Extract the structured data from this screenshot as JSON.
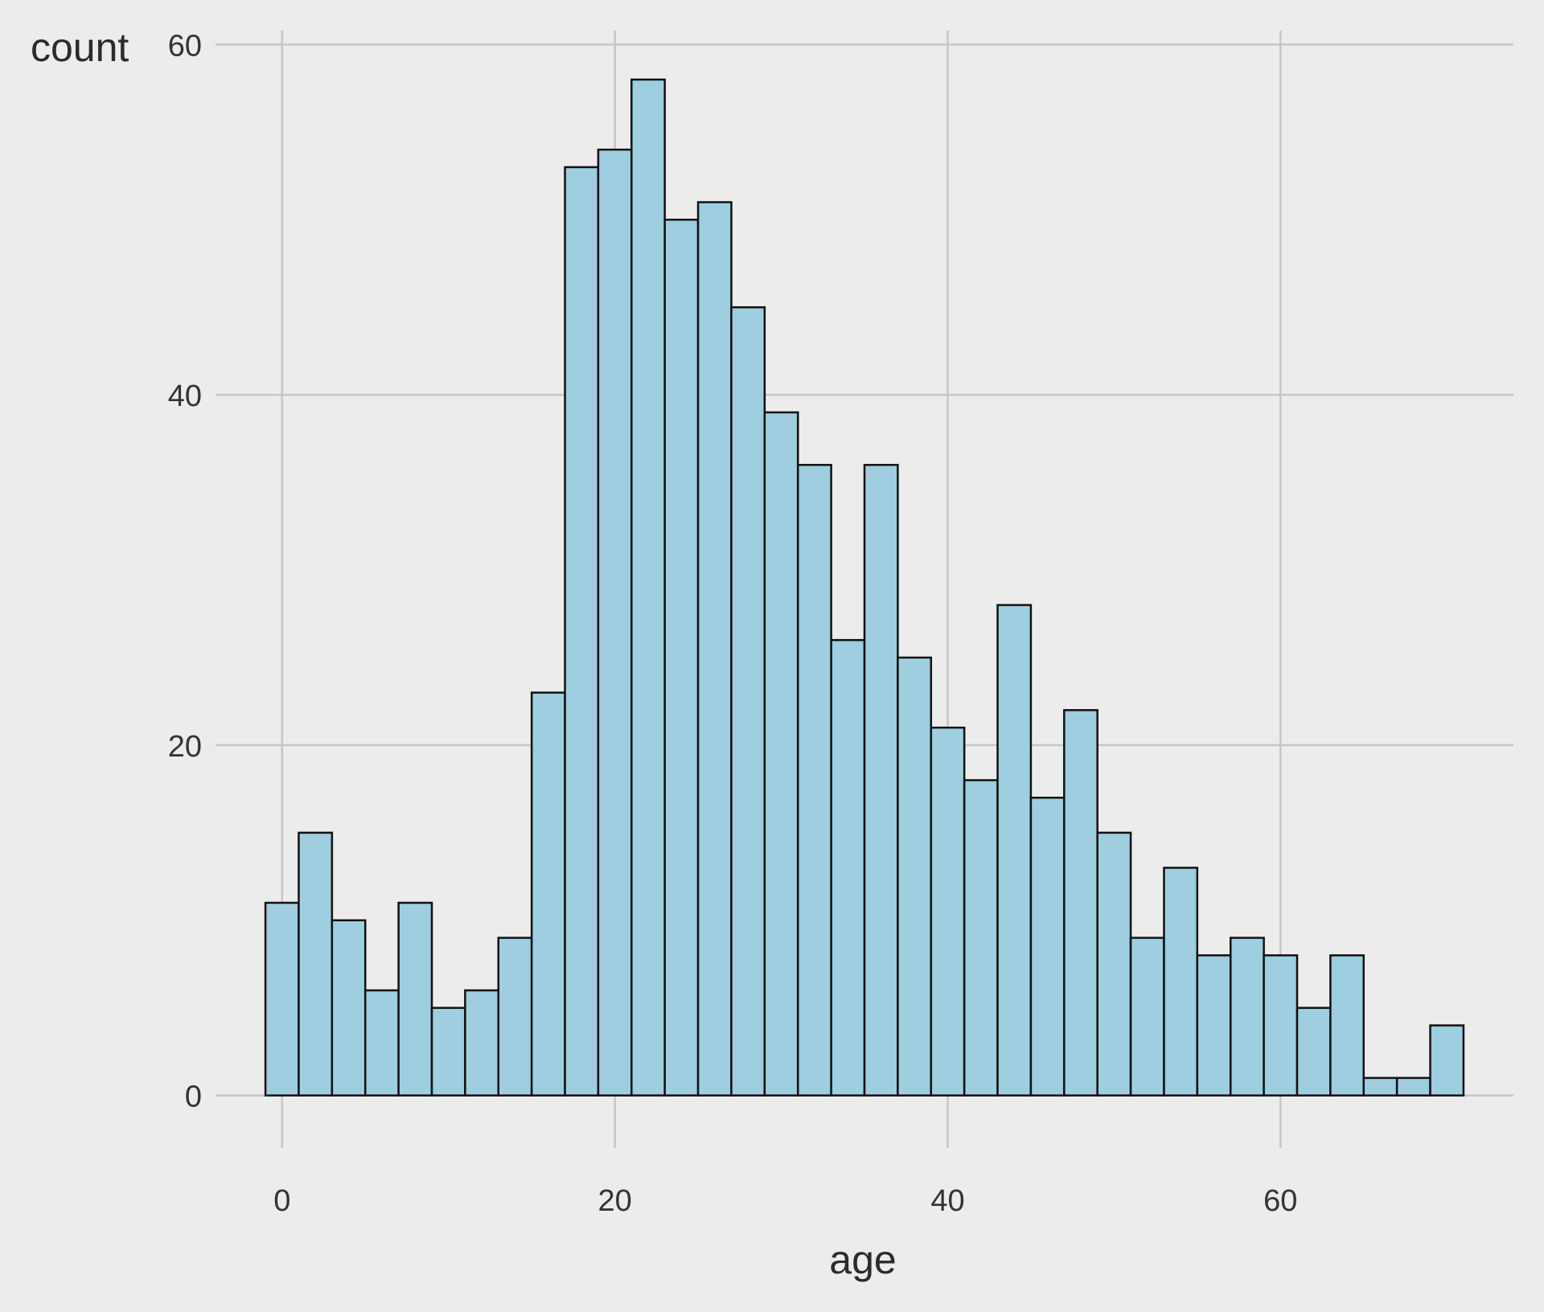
{
  "chart_data": {
    "type": "bar",
    "title": "",
    "xlabel": "age",
    "ylabel": "count",
    "bin_width": 2,
    "bin_start": -1,
    "values": [
      11,
      15,
      10,
      6,
      11,
      5,
      6,
      9,
      23,
      53,
      54,
      58,
      50,
      51,
      45,
      39,
      36,
      26,
      36,
      25,
      21,
      18,
      28,
      17,
      22,
      15,
      9,
      13,
      8,
      9,
      8,
      5,
      8,
      1,
      1,
      4
    ],
    "xlim": [
      -4,
      74
    ],
    "ylim": [
      -3,
      60.8
    ],
    "x_ticks": [
      {
        "value": 0,
        "label": "0"
      },
      {
        "value": 20,
        "label": "20"
      },
      {
        "value": 40,
        "label": "40"
      },
      {
        "value": 60,
        "label": "60"
      }
    ],
    "y_ticks": [
      {
        "value": 0,
        "label": "0"
      },
      {
        "value": 20,
        "label": "20"
      },
      {
        "value": 40,
        "label": "40"
      },
      {
        "value": 60,
        "label": "60"
      }
    ],
    "grid": true,
    "legend": "none"
  },
  "colors": {
    "background": "#ececec",
    "grid": "#c6c6c6",
    "bar_fill": "#9ecee0",
    "bar_stroke": "#111111",
    "text": "#333333"
  }
}
